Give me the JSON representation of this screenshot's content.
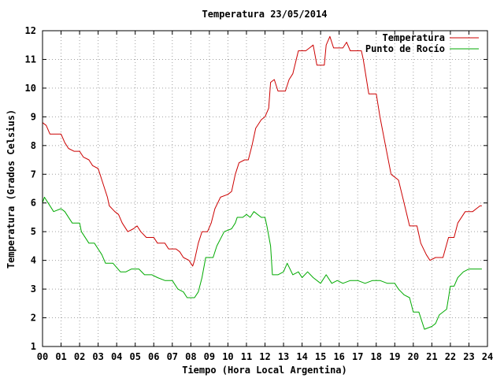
{
  "chart_data": {
    "type": "line",
    "title": "Temperatura 23/05/2014",
    "xlabel": "Tiempo (Hora Local Argentina)",
    "ylabel": "Temperatura (Grados Celsius)",
    "xlim": [
      0,
      24
    ],
    "ylim": [
      1,
      12
    ],
    "x_ticks": [
      "00",
      "01",
      "02",
      "03",
      "04",
      "05",
      "06",
      "07",
      "08",
      "09",
      "10",
      "11",
      "12",
      "13",
      "14",
      "15",
      "16",
      "17",
      "18",
      "19",
      "20",
      "21",
      "22",
      "23",
      "24"
    ],
    "y_ticks": [
      "1",
      "2",
      "3",
      "4",
      "5",
      "6",
      "7",
      "8",
      "9",
      "10",
      "11",
      "12"
    ],
    "grid": true,
    "legend_position": "top-right",
    "series": [
      {
        "name": "Temperatura",
        "color": "#cc0000",
        "points": [
          [
            0,
            8.8
          ],
          [
            0.2,
            8.7
          ],
          [
            0.4,
            8.4
          ],
          [
            0.6,
            8.4
          ],
          [
            1.0,
            8.4
          ],
          [
            1.2,
            8.1
          ],
          [
            1.4,
            7.9
          ],
          [
            1.7,
            7.8
          ],
          [
            2.0,
            7.8
          ],
          [
            2.2,
            7.6
          ],
          [
            2.5,
            7.5
          ],
          [
            2.7,
            7.3
          ],
          [
            3.0,
            7.2
          ],
          [
            3.1,
            7.0
          ],
          [
            3.3,
            6.6
          ],
          [
            3.5,
            6.2
          ],
          [
            3.6,
            5.9
          ],
          [
            3.9,
            5.7
          ],
          [
            4.1,
            5.6
          ],
          [
            4.3,
            5.3
          ],
          [
            4.6,
            5.0
          ],
          [
            4.9,
            5.1
          ],
          [
            5.1,
            5.2
          ],
          [
            5.3,
            5.0
          ],
          [
            5.6,
            4.8
          ],
          [
            6.0,
            4.8
          ],
          [
            6.2,
            4.6
          ],
          [
            6.6,
            4.6
          ],
          [
            6.8,
            4.4
          ],
          [
            7.2,
            4.4
          ],
          [
            7.4,
            4.3
          ],
          [
            7.6,
            4.1
          ],
          [
            7.9,
            4.0
          ],
          [
            8.0,
            3.9
          ],
          [
            8.1,
            3.8
          ],
          [
            8.2,
            4.0
          ],
          [
            8.4,
            4.6
          ],
          [
            8.6,
            5.0
          ],
          [
            8.9,
            5.0
          ],
          [
            9.1,
            5.3
          ],
          [
            9.3,
            5.8
          ],
          [
            9.6,
            6.2
          ],
          [
            10.0,
            6.3
          ],
          [
            10.2,
            6.4
          ],
          [
            10.4,
            7.0
          ],
          [
            10.6,
            7.4
          ],
          [
            10.9,
            7.5
          ],
          [
            11.1,
            7.5
          ],
          [
            11.3,
            8.0
          ],
          [
            11.5,
            8.6
          ],
          [
            11.8,
            8.9
          ],
          [
            12.0,
            9.0
          ],
          [
            12.2,
            9.3
          ],
          [
            12.3,
            10.2
          ],
          [
            12.5,
            10.3
          ],
          [
            12.7,
            9.9
          ],
          [
            13.1,
            9.9
          ],
          [
            13.3,
            10.3
          ],
          [
            13.5,
            10.5
          ],
          [
            13.8,
            11.3
          ],
          [
            14.2,
            11.3
          ],
          [
            14.4,
            11.4
          ],
          [
            14.6,
            11.5
          ],
          [
            14.8,
            10.8
          ],
          [
            15.2,
            10.8
          ],
          [
            15.3,
            11.5
          ],
          [
            15.5,
            11.8
          ],
          [
            15.7,
            11.4
          ],
          [
            16.2,
            11.4
          ],
          [
            16.4,
            11.6
          ],
          [
            16.6,
            11.3
          ],
          [
            17.2,
            11.3
          ],
          [
            17.3,
            11.0
          ],
          [
            17.6,
            9.8
          ],
          [
            18.0,
            9.8
          ],
          [
            18.2,
            9.0
          ],
          [
            18.5,
            8.0
          ],
          [
            18.8,
            7.0
          ],
          [
            19.2,
            6.8
          ],
          [
            19.5,
            6.0
          ],
          [
            19.8,
            5.2
          ],
          [
            20.2,
            5.2
          ],
          [
            20.4,
            4.6
          ],
          [
            20.7,
            4.2
          ],
          [
            20.9,
            4.0
          ],
          [
            21.2,
            4.1
          ],
          [
            21.6,
            4.1
          ],
          [
            21.9,
            4.8
          ],
          [
            22.2,
            4.8
          ],
          [
            22.4,
            5.3
          ],
          [
            22.8,
            5.7
          ],
          [
            23.2,
            5.7
          ],
          [
            23.4,
            5.8
          ],
          [
            23.6,
            5.9
          ],
          [
            23.7,
            5.9
          ]
        ]
      },
      {
        "name": "Punto de Rocío",
        "color": "#00aa00",
        "points": [
          [
            0,
            6.0
          ],
          [
            0.1,
            6.2
          ],
          [
            0.3,
            6.0
          ],
          [
            0.6,
            5.7
          ],
          [
            1.0,
            5.8
          ],
          [
            1.2,
            5.7
          ],
          [
            1.6,
            5.3
          ],
          [
            2.0,
            5.3
          ],
          [
            2.1,
            5.0
          ],
          [
            2.5,
            4.6
          ],
          [
            2.8,
            4.6
          ],
          [
            3.0,
            4.4
          ],
          [
            3.2,
            4.2
          ],
          [
            3.4,
            3.9
          ],
          [
            3.8,
            3.9
          ],
          [
            4.2,
            3.6
          ],
          [
            4.5,
            3.6
          ],
          [
            4.8,
            3.7
          ],
          [
            5.2,
            3.7
          ],
          [
            5.5,
            3.5
          ],
          [
            5.9,
            3.5
          ],
          [
            6.2,
            3.4
          ],
          [
            6.6,
            3.3
          ],
          [
            7.0,
            3.3
          ],
          [
            7.3,
            3.0
          ],
          [
            7.6,
            2.9
          ],
          [
            7.8,
            2.7
          ],
          [
            8.2,
            2.7
          ],
          [
            8.4,
            2.9
          ],
          [
            8.6,
            3.4
          ],
          [
            8.8,
            4.1
          ],
          [
            9.2,
            4.1
          ],
          [
            9.4,
            4.5
          ],
          [
            9.8,
            5.0
          ],
          [
            10.2,
            5.1
          ],
          [
            10.4,
            5.3
          ],
          [
            10.5,
            5.5
          ],
          [
            10.8,
            5.5
          ],
          [
            11.0,
            5.6
          ],
          [
            11.2,
            5.5
          ],
          [
            11.4,
            5.7
          ],
          [
            11.8,
            5.5
          ],
          [
            12.0,
            5.5
          ],
          [
            12.1,
            5.2
          ],
          [
            12.3,
            4.5
          ],
          [
            12.4,
            3.5
          ],
          [
            12.7,
            3.5
          ],
          [
            13.0,
            3.6
          ],
          [
            13.2,
            3.9
          ],
          [
            13.5,
            3.5
          ],
          [
            13.8,
            3.6
          ],
          [
            14.0,
            3.4
          ],
          [
            14.3,
            3.6
          ],
          [
            14.6,
            3.4
          ],
          [
            15.0,
            3.2
          ],
          [
            15.3,
            3.5
          ],
          [
            15.6,
            3.2
          ],
          [
            15.9,
            3.3
          ],
          [
            16.2,
            3.2
          ],
          [
            16.6,
            3.3
          ],
          [
            17.0,
            3.3
          ],
          [
            17.4,
            3.2
          ],
          [
            17.8,
            3.3
          ],
          [
            18.2,
            3.3
          ],
          [
            18.6,
            3.2
          ],
          [
            19.0,
            3.2
          ],
          [
            19.2,
            3.0
          ],
          [
            19.5,
            2.8
          ],
          [
            19.8,
            2.7
          ],
          [
            20.0,
            2.2
          ],
          [
            20.3,
            2.2
          ],
          [
            20.6,
            1.6
          ],
          [
            21.0,
            1.7
          ],
          [
            21.2,
            1.8
          ],
          [
            21.4,
            2.1
          ],
          [
            21.8,
            2.3
          ],
          [
            22.0,
            3.1
          ],
          [
            22.2,
            3.1
          ],
          [
            22.4,
            3.4
          ],
          [
            22.7,
            3.6
          ],
          [
            23.0,
            3.7
          ],
          [
            23.4,
            3.7
          ],
          [
            23.7,
            3.7
          ]
        ]
      }
    ]
  }
}
